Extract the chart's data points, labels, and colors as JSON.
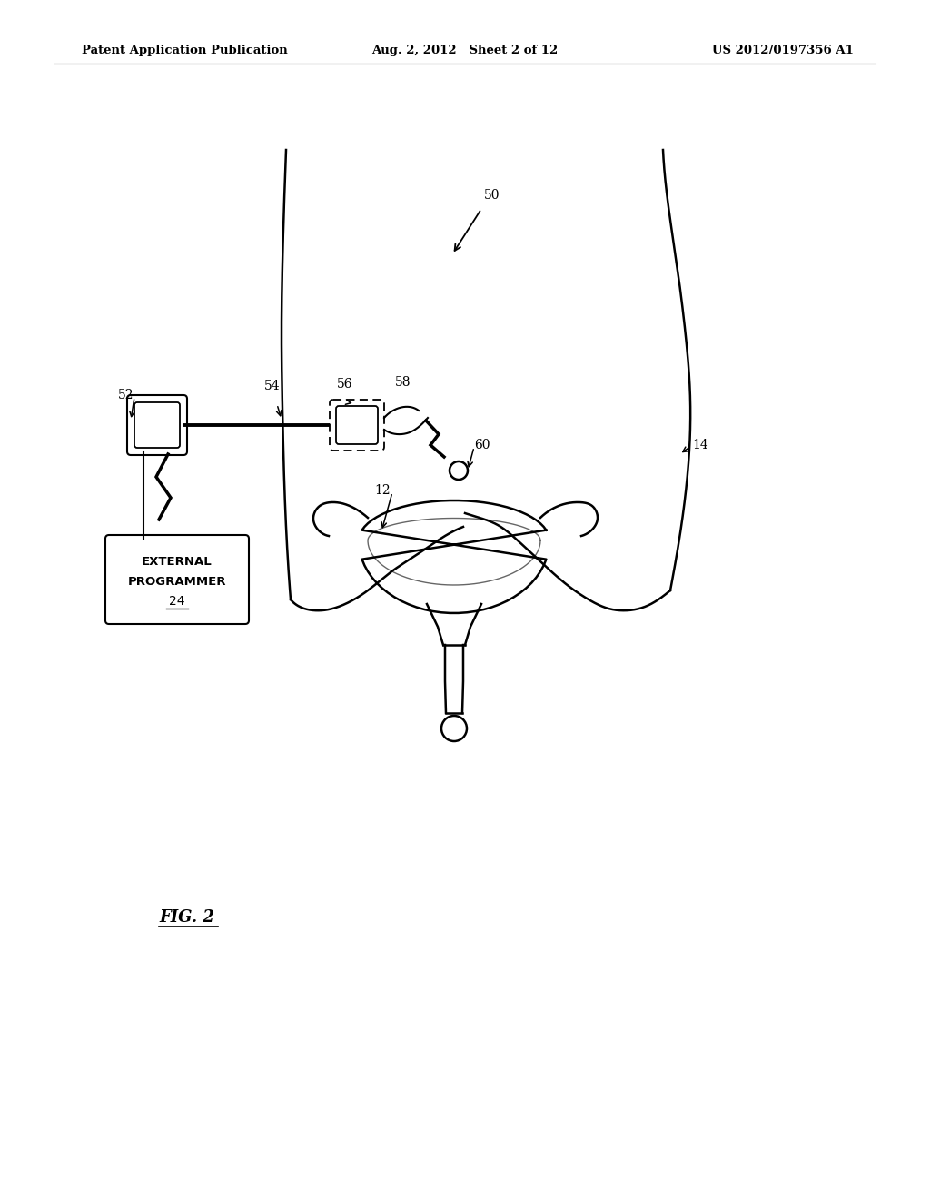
{
  "title_left": "Patent Application Publication",
  "title_center": "Aug. 2, 2012   Sheet 2 of 12",
  "title_right": "US 2012/0197356 A1",
  "fig_label": "FIG. 2",
  "background_color": "#ffffff"
}
